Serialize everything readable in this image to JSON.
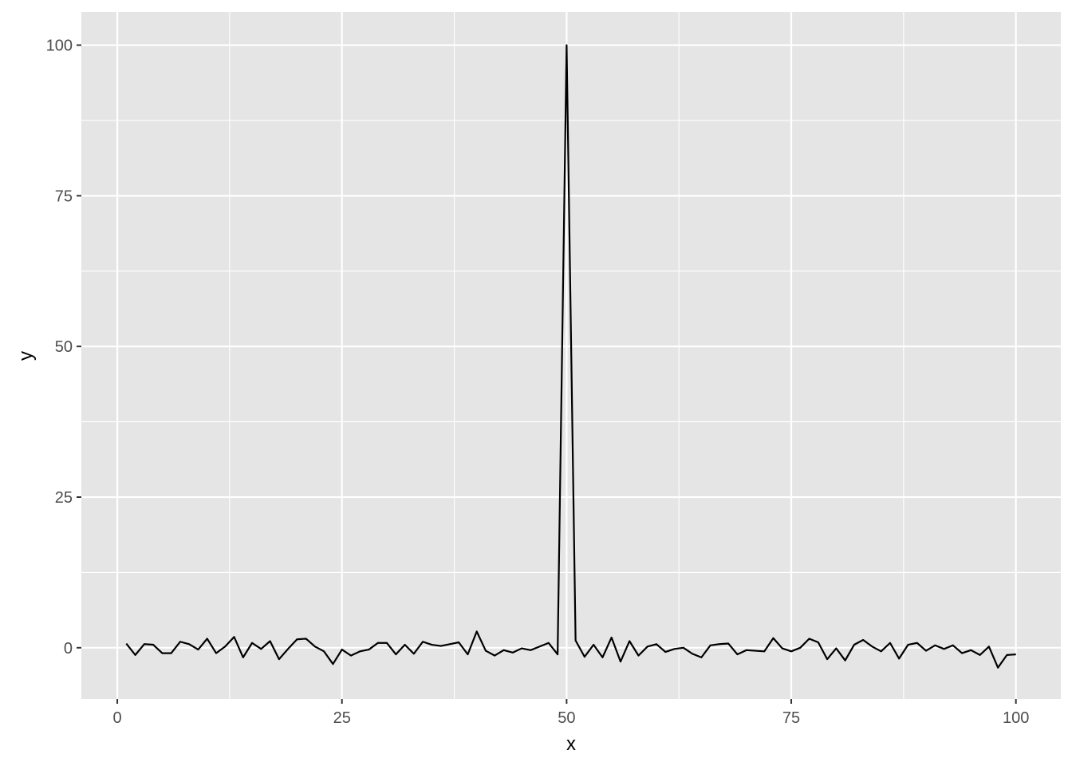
{
  "chart_data": {
    "type": "line",
    "xlabel": "x",
    "ylabel": "y",
    "xlim": [
      -4,
      105
    ],
    "ylim": [
      -8.5,
      105.5
    ],
    "x_ticks": [
      0,
      25,
      50,
      75,
      100
    ],
    "y_ticks": [
      0,
      25,
      50,
      75,
      100
    ],
    "x_minor_ticks": [
      12.5,
      37.5,
      62.5,
      87.5
    ],
    "y_minor_ticks": [
      12.5,
      37.5,
      62.5,
      87.5
    ],
    "grid": true,
    "colors": {
      "panel": "#e5e5e5",
      "grid": "#ffffff",
      "line": "#000000",
      "tick": "#333333"
    },
    "series": [
      {
        "x": [
          1,
          2,
          3,
          4,
          5,
          6,
          7,
          8,
          9,
          10,
          11,
          12,
          13,
          14,
          15,
          16,
          17,
          18,
          19,
          20,
          21,
          22,
          23,
          24,
          25,
          26,
          27,
          28,
          29,
          30,
          31,
          32,
          33,
          34,
          35,
          36,
          37,
          38,
          39,
          40,
          41,
          42,
          43,
          44,
          45,
          46,
          47,
          48,
          49,
          50,
          51,
          52,
          53,
          54,
          55,
          56,
          57,
          58,
          59,
          60,
          61,
          62,
          63,
          64,
          65,
          66,
          67,
          68,
          69,
          70,
          71,
          72,
          73,
          74,
          75,
          76,
          77,
          78,
          79,
          80,
          81,
          82,
          83,
          84,
          85,
          86,
          87,
          88,
          89,
          90,
          91,
          92,
          93,
          94,
          95,
          96,
          97,
          98,
          99,
          100
        ],
        "values": [
          0.7,
          -1.2,
          0.6,
          0.5,
          -0.9,
          -0.9,
          1.0,
          0.6,
          -0.3,
          1.5,
          -0.9,
          0.2,
          1.8,
          -1.6,
          0.8,
          -0.2,
          1.1,
          -1.9,
          -0.2,
          1.4,
          1.5,
          0.2,
          -0.6,
          -2.7,
          -0.3,
          -1.3,
          -0.6,
          -0.3,
          0.8,
          0.8,
          -1.1,
          0.5,
          -1.0,
          1.0,
          0.5,
          0.3,
          0.6,
          0.9,
          -1.1,
          2.7,
          -0.5,
          -1.3,
          -0.4,
          -0.8,
          -0.1,
          -0.4,
          0.2,
          0.8,
          -1.1,
          100,
          1.2,
          -1.5,
          0.5,
          -1.6,
          1.7,
          -2.3,
          1.1,
          -1.3,
          0.2,
          0.6,
          -0.7,
          -0.2,
          0.0,
          -1.0,
          -1.6,
          0.4,
          0.6,
          0.7,
          -1.1,
          -0.4,
          -0.5,
          -0.6,
          1.6,
          -0.1,
          -0.6,
          0.0,
          1.5,
          0.9,
          -1.9,
          -0.1,
          -2.1,
          0.5,
          1.3,
          0.2,
          -0.6,
          0.8,
          -1.8,
          0.5,
          0.8,
          -0.5,
          0.4,
          -0.2,
          0.4,
          -0.9,
          -0.4,
          -1.2,
          0.2,
          -3.3,
          -1.2,
          -1.1
        ]
      }
    ]
  }
}
